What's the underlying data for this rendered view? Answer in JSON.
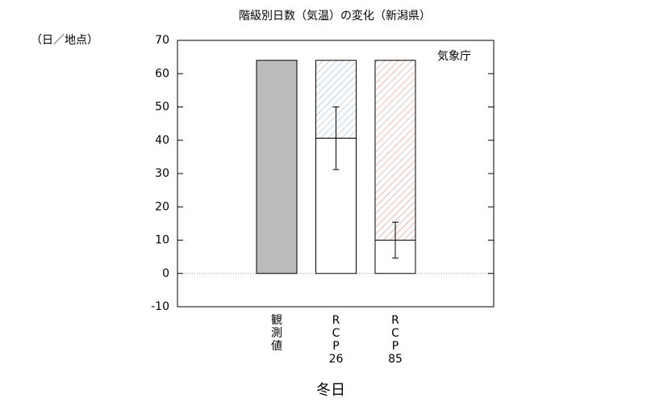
{
  "chart_data": {
    "type": "bar",
    "title": "階級別日数（気温）の変化（新潟県）",
    "y_unit": "（日／地点）",
    "annotation": "気象庁",
    "x_label": "冬日",
    "categories": [
      "観測値",
      "RCP26",
      "RCP85"
    ],
    "values": [
      64,
      40.6,
      10
    ],
    "errors": [
      null,
      9.4,
      5.4
    ],
    "colors": [
      "#bbbbbb",
      "#7fb0d8",
      "#e08070"
    ],
    "ylim": [
      -10,
      70
    ],
    "yticks": [
      -10,
      0,
      10,
      20,
      30,
      40,
      50,
      60,
      70
    ]
  }
}
